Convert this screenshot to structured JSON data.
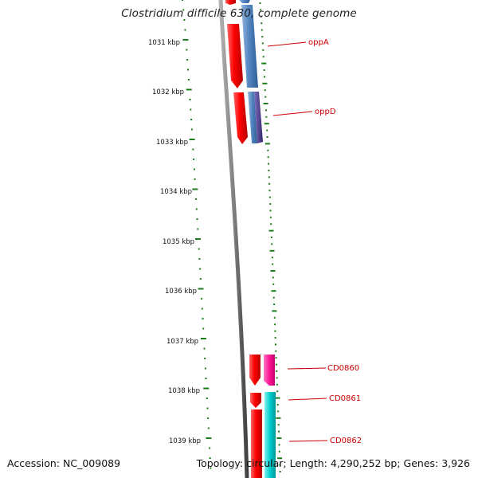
{
  "title": "Clostridium difficile 630, complete genome",
  "footer": {
    "accession": "Accession: NC_009089",
    "summary": "Topology: circular; Length: 4,290,252 bp; Genes: 3,926"
  },
  "ruler": {
    "labels": [
      "1031 kbp",
      "1032 kbp",
      "1033 kbp",
      "1034 kbp",
      "1035 kbp",
      "1036 kbp",
      "1037 kbp",
      "1038 kbp",
      "1039 kbp"
    ],
    "tick_color": "#1a7f1a"
  },
  "backbone": {
    "color": "#808080",
    "shadow_color": "#505050"
  },
  "features": [
    {
      "label": "oppA",
      "color_forward": "#ff0000",
      "color_reverse": "#4f81bd"
    },
    {
      "label": "oppD",
      "color_forward": "#ff0000",
      "color_reverse": "#4f81bd",
      "accent": "#4b3a8c"
    },
    {
      "label": "CD0860",
      "color_forward": "#ff0000",
      "color_reverse": "#ff1493"
    },
    {
      "label": "CD0861",
      "color_forward": "#ff0000",
      "color_reverse": "#00cccc"
    },
    {
      "label": "CD0862",
      "color_forward": "#ff0000",
      "color_reverse": "#00cccc"
    }
  ],
  "label_color": "#cc0000"
}
